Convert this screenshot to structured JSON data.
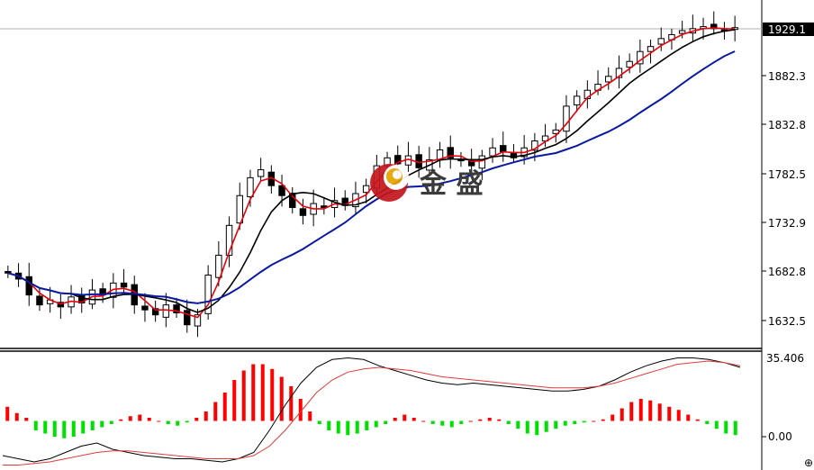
{
  "chart_data": [
    {
      "type": "candlestick",
      "panel": "price",
      "y_ticks": [
        "1632.5",
        "1682.8",
        "1732.9",
        "1782.5",
        "1832.8",
        "1882.3"
      ],
      "current_price_label": "1929.1",
      "ylim": [
        1608,
        1955
      ],
      "series": [
        {
          "name": "",
          "color": "#e8000b",
          "kind": "ma-fast"
        },
        {
          "name": "",
          "color": "#000000",
          "kind": "ma-mid"
        },
        {
          "name": "",
          "color": "#0a1aa0",
          "kind": "ma-slow"
        }
      ],
      "ohlc_anchor_closes": [
        1682,
        1676,
        1660,
        1650,
        1655,
        1648,
        1658,
        1652,
        1665,
        1660,
        1672,
        1668,
        1650,
        1645,
        1640,
        1650,
        1642,
        1630,
        1640,
        1680,
        1700,
        1730,
        1760,
        1778,
        1786,
        1770,
        1760,
        1748,
        1740,
        1752,
        1748,
        1755,
        1750,
        1762,
        1770,
        1790,
        1798,
        1792,
        1800,
        1788,
        1796,
        1806,
        1798,
        1795,
        1790,
        1800,
        1808,
        1804,
        1798,
        1808,
        1815,
        1820,
        1826,
        1850,
        1860,
        1866,
        1872,
        1880,
        1888,
        1895,
        1905,
        1910,
        1918,
        1922,
        1926,
        1928,
        1930,
        1928,
        1926,
        1929
      ]
    },
    {
      "type": "bar+line",
      "panel": "indicator",
      "y_ticks": [
        "35.406",
        "0.00"
      ],
      "ylim": [
        -30,
        42
      ],
      "histogram": [
        9,
        5,
        2,
        -6,
        -8,
        -10,
        -11,
        -10,
        -8,
        -6,
        -4,
        -2,
        1,
        3,
        4,
        2,
        0,
        -2,
        -3,
        -1,
        2,
        6,
        12,
        18,
        26,
        32,
        36,
        36,
        33,
        28,
        22,
        14,
        6,
        -2,
        -6,
        -8,
        -9,
        -8,
        -6,
        -4,
        -2,
        2,
        4,
        2,
        0,
        -2,
        -3,
        -4,
        -2,
        0,
        1,
        2,
        1,
        -2,
        -5,
        -8,
        -9,
        -7,
        -5,
        -3,
        -2,
        -1,
        0,
        1,
        4,
        8,
        12,
        14,
        13,
        11,
        9,
        7,
        4,
        1,
        -2,
        -5,
        -8,
        -9
      ],
      "line_black": [
        -22,
        -24,
        -26,
        -24,
        -20,
        -16,
        -14,
        -18,
        -20,
        -22,
        -23,
        -24,
        -24,
        -25,
        -26,
        -24,
        -20,
        -6,
        10,
        24,
        34,
        39,
        40,
        39,
        35,
        32,
        29,
        26,
        24,
        23,
        24,
        23,
        22,
        21,
        20,
        19,
        19,
        20,
        22,
        26,
        31,
        35,
        38,
        40,
        40,
        39,
        37,
        34
      ],
      "line_red": [
        -28,
        -28,
        -27,
        -26,
        -24,
        -22,
        -20,
        -19,
        -19,
        -20,
        -21,
        -22,
        -23,
        -24,
        -24,
        -24,
        -22,
        -16,
        -6,
        6,
        18,
        26,
        31,
        33,
        34,
        33,
        32,
        30,
        28,
        27,
        26,
        25,
        24,
        23,
        22,
        21,
        21,
        21,
        22,
        24,
        27,
        30,
        33,
        36,
        37,
        38,
        37,
        35
      ]
    }
  ],
  "watermark": {
    "text": "金 盛",
    "icon": "jinsheng-logo-icon"
  }
}
